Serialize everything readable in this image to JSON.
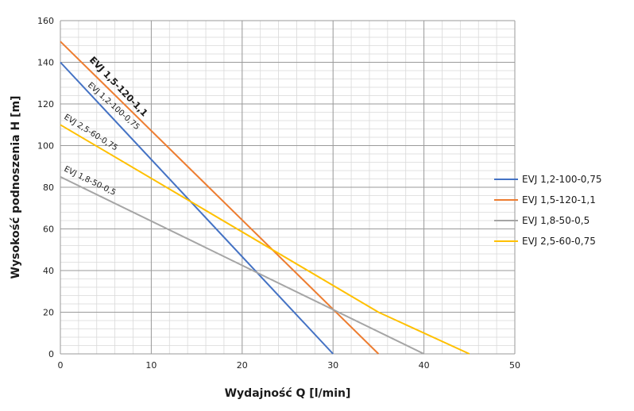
{
  "chart_data": {
    "type": "line",
    "xlabel": "Wydajność Q [l/min]",
    "ylabel": "Wysokość podnoszenia H [m]",
    "xlim": [
      0,
      50
    ],
    "ylim": [
      0,
      160
    ],
    "x_major_ticks": [
      0,
      10,
      20,
      30,
      40,
      50
    ],
    "y_major_ticks": [
      0,
      20,
      40,
      60,
      80,
      100,
      120,
      140,
      160
    ],
    "x_minor_step": 2,
    "y_minor_step": 4,
    "grid": true,
    "legend_position": "right",
    "series": [
      {
        "name": "EVJ 1,2-100-0,75",
        "color": "#4472c4",
        "x": [
          0,
          30
        ],
        "y": [
          140,
          0
        ]
      },
      {
        "name": "EVJ 1,5-120-1,1",
        "color": "#ed7d31",
        "x": [
          0,
          35
        ],
        "y": [
          150,
          0
        ]
      },
      {
        "name": "EVJ 1,8-50-0,5",
        "color": "#a5a5a5",
        "x": [
          0,
          40
        ],
        "y": [
          85,
          0
        ]
      },
      {
        "name": "EVJ 2,5-60-0,75",
        "color": "#ffc000",
        "x": [
          0,
          35,
          45
        ],
        "y": [
          110,
          20,
          0
        ]
      }
    ],
    "curve_labels": [
      {
        "text": "EVJ 1,5-120-1,1",
        "bold": true
      },
      {
        "text": "EVJ 1,2-100-0,75",
        "bold": false
      },
      {
        "text": "EVJ 2,5-60-0,75",
        "bold": false
      },
      {
        "text": "EVJ 1,8-50-0,5",
        "bold": false
      }
    ]
  }
}
